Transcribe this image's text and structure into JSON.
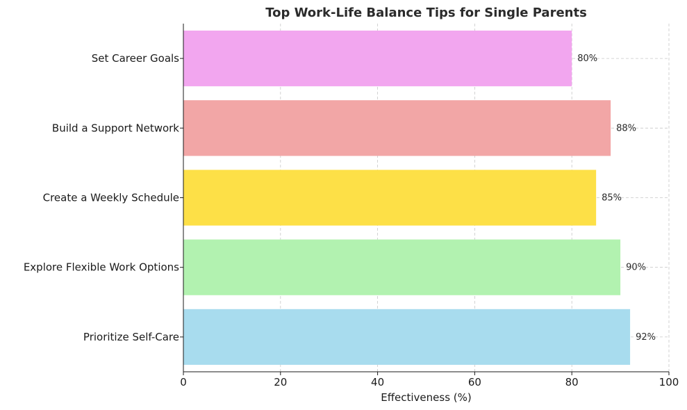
{
  "chart_data": {
    "type": "bar",
    "orientation": "horizontal",
    "title": "Top Work-Life Balance Tips for Single Parents",
    "xlabel": "Effectiveness (%)",
    "ylabel": "",
    "categories": [
      "Prioritize Self-Care",
      "Explore Flexible Work Options",
      "Create a Weekly Schedule",
      "Build a Support Network",
      "Set Career Goals"
    ],
    "values": [
      92,
      90,
      85,
      88,
      80
    ],
    "value_labels": [
      "92%",
      "90%",
      "85%",
      "88%",
      "80%"
    ],
    "colors": [
      "#a8dcee",
      "#b2f2b0",
      "#fde047",
      "#f2a6a6",
      "#f2a6ef"
    ],
    "xlim": [
      0,
      100
    ],
    "xticks": [
      0,
      20,
      40,
      60,
      80,
      100
    ],
    "xtick_labels": [
      "0",
      "20",
      "40",
      "60",
      "80",
      "100"
    ],
    "grid": true,
    "legend": "none"
  }
}
